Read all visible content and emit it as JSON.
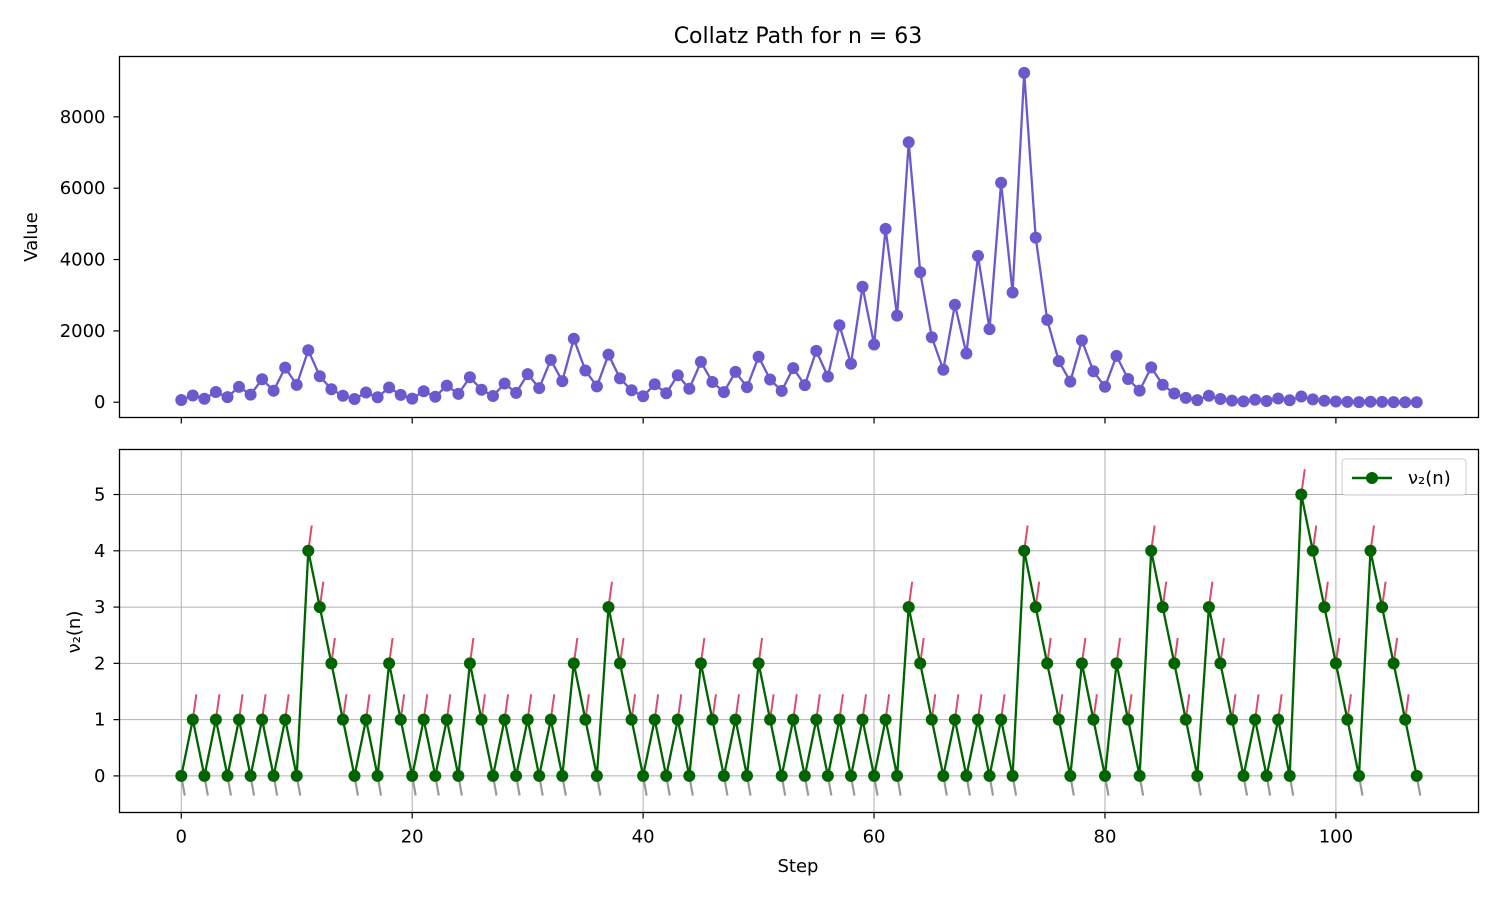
{
  "chart_data": [
    {
      "type": "line",
      "title": "Collatz Path for n = 63",
      "xlabel": "",
      "ylabel": "Value",
      "xlim": [
        -5.35,
        112.35
      ],
      "ylim": [
        -428,
        9692
      ],
      "yticks": [
        0,
        2000,
        4000,
        6000,
        8000
      ],
      "xticks": [
        0,
        20,
        40,
        60,
        80,
        100
      ],
      "grid": false,
      "colors": {
        "line": "#6a5acd"
      },
      "series": [
        {
          "x_start": 0,
          "values": [
            63,
            190,
            95,
            286,
            143,
            430,
            215,
            646,
            323,
            970,
            485,
            1456,
            728,
            364,
            182,
            91,
            274,
            137,
            412,
            206,
            103,
            310,
            155,
            466,
            233,
            700,
            350,
            175,
            526,
            263,
            790,
            395,
            1186,
            593,
            1780,
            890,
            445,
            1336,
            668,
            334,
            167,
            502,
            251,
            754,
            377,
            1132,
            566,
            283,
            850,
            425,
            1276,
            638,
            319,
            958,
            479,
            1438,
            719,
            2158,
            1079,
            3238,
            1619,
            4858,
            2429,
            7288,
            3644,
            1822,
            911,
            2734,
            1367,
            4102,
            2051,
            6154,
            3077,
            9232,
            4616,
            2308,
            1154,
            577,
            1732,
            866,
            433,
            1300,
            650,
            325,
            976,
            488,
            244,
            122,
            61,
            184,
            92,
            46,
            23,
            70,
            35,
            106,
            53,
            160,
            80,
            40,
            20,
            10,
            5,
            16,
            8,
            4,
            2,
            1
          ]
        }
      ]
    },
    {
      "type": "line",
      "title": "",
      "xlabel": "Step",
      "ylabel": "ν₂(n)",
      "xlim": [
        -5.35,
        112.35
      ],
      "ylim": [
        -0.65,
        5.8
      ],
      "yticks": [
        0,
        1,
        2,
        3,
        4,
        5
      ],
      "xticks": [
        0,
        20,
        40,
        60,
        80,
        100
      ],
      "grid": true,
      "legend": {
        "placement": "top-right",
        "entries": [
          "ν₂(n)"
        ]
      },
      "colors": {
        "line": "#006400",
        "up_tick": "#dc4c6e",
        "down_tick": "#999999"
      },
      "series": [
        {
          "name": "ν₂(n)",
          "x_start": 0,
          "values": [
            0,
            1,
            0,
            1,
            0,
            1,
            0,
            1,
            0,
            1,
            0,
            4,
            3,
            2,
            1,
            0,
            1,
            0,
            2,
            1,
            0,
            1,
            0,
            1,
            0,
            2,
            1,
            0,
            1,
            0,
            1,
            0,
            1,
            0,
            2,
            1,
            0,
            3,
            2,
            1,
            0,
            1,
            0,
            1,
            0,
            2,
            1,
            0,
            1,
            0,
            2,
            1,
            0,
            1,
            0,
            1,
            0,
            1,
            0,
            1,
            0,
            1,
            0,
            3,
            2,
            1,
            0,
            1,
            0,
            1,
            0,
            1,
            0,
            4,
            3,
            2,
            1,
            0,
            2,
            1,
            0,
            2,
            1,
            0,
            4,
            3,
            2,
            1,
            0,
            3,
            2,
            1,
            0,
            1,
            0,
            1,
            0,
            5,
            4,
            3,
            2,
            1,
            0,
            4,
            3,
            2,
            1,
            0
          ]
        }
      ]
    }
  ],
  "xticklabels": [
    "0",
    "20",
    "40",
    "60",
    "80",
    "100"
  ]
}
